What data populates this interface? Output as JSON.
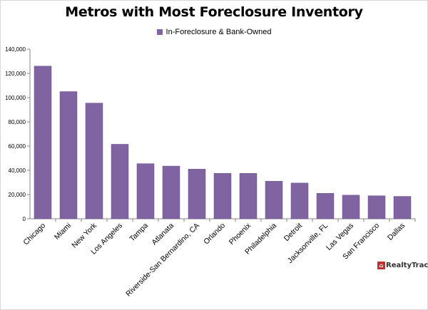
{
  "colors": {
    "bar": "#8064a2",
    "bar_stroke": "#6b5289",
    "axis": "#868686"
  },
  "logo": {
    "text": "RealtyTrac",
    "icon": "house-logo-icon"
  },
  "chart_data": {
    "type": "bar",
    "title": "Metros with Most Foreclosure Inventory",
    "legend": "top",
    "xlabel": "",
    "ylabel": "",
    "grid": false,
    "ylim": [
      0,
      140000
    ],
    "yticks": [
      0,
      20000,
      40000,
      60000,
      80000,
      100000,
      120000,
      140000
    ],
    "ytick_labels": [
      "0",
      "20,000",
      "40,000",
      "60,000",
      "80,000",
      "100,000",
      "120,000",
      "140,000"
    ],
    "categories": [
      "Chicago",
      "Miami",
      "New York",
      "Los Angeles",
      "Tampa",
      "Atlanata",
      "Riverside-San Bernardino, CA",
      "Orlando",
      "Phoenix",
      "Philadelphia",
      "Detroit",
      "Jacksonville, FL",
      "Las Vegas",
      "San Francisco",
      "Dallas"
    ],
    "series": [
      {
        "name": "In-Foreclosure & Bank-Owned",
        "values": [
          126000,
          105000,
          95500,
          61500,
          45500,
          43500,
          41000,
          37500,
          37500,
          31000,
          29500,
          21000,
          19500,
          19000,
          18500
        ]
      }
    ]
  }
}
